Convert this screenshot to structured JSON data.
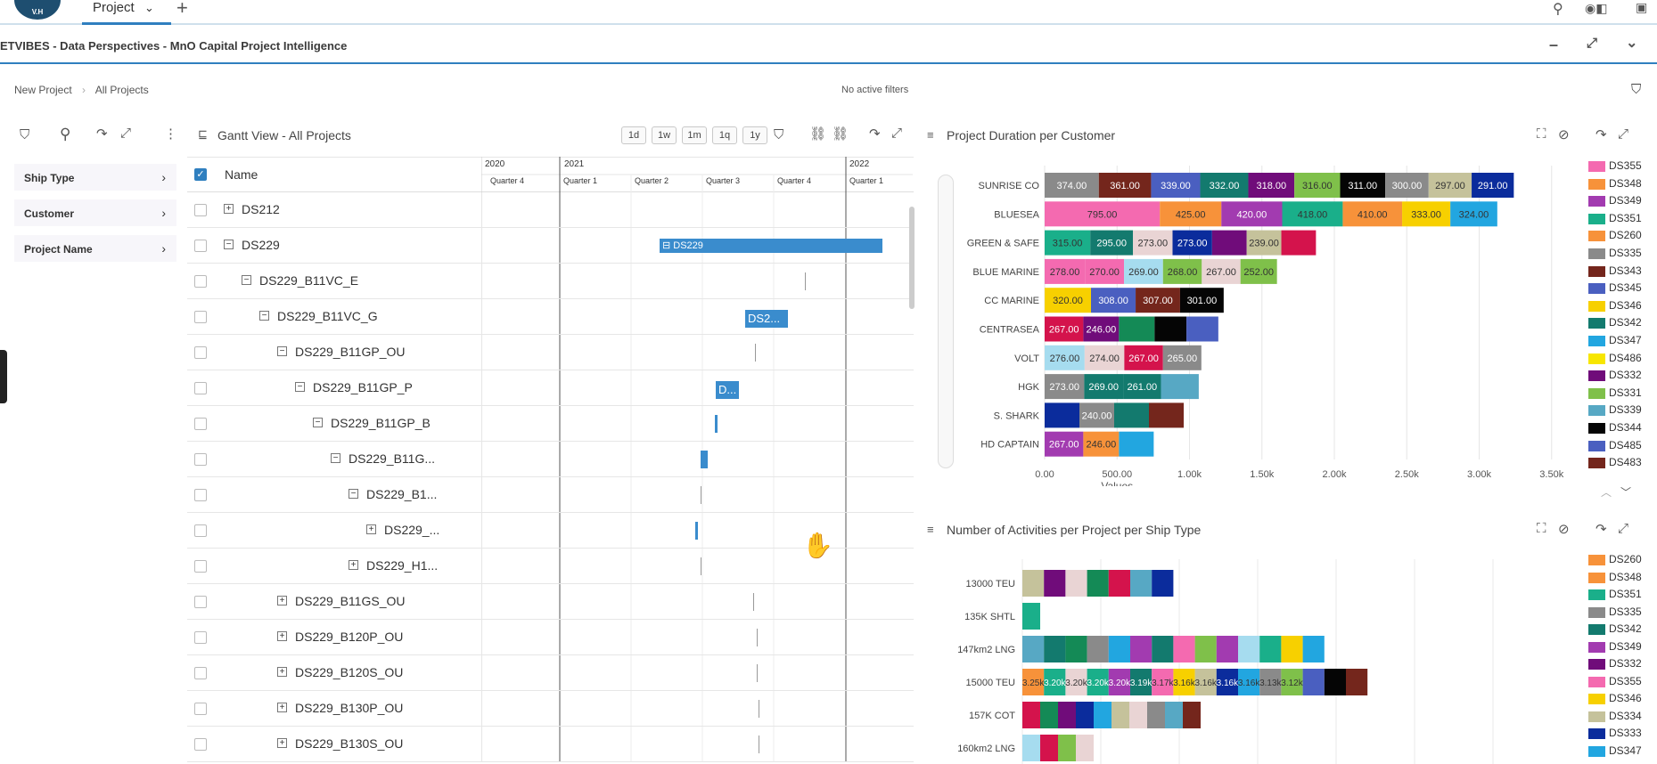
{
  "app": {
    "logo_text": "V.H",
    "tab_label": "Project",
    "window_title": "ETVIBES - Data Perspectives - MnO Capital Project Intelligence"
  },
  "breadcrumb": {
    "items": [
      "New Project",
      "All Projects"
    ],
    "filter_status": "No active filters"
  },
  "filters": {
    "items": [
      "Ship Type",
      "Customer",
      "Project Name"
    ]
  },
  "gantt": {
    "title": "Gantt View - All Projects",
    "zoom": [
      "1d",
      "1w",
      "1m",
      "1q",
      "1y"
    ],
    "name_header": "Name",
    "years": [
      "2020",
      "2021",
      "2022"
    ],
    "quarters": [
      "Quarter 4",
      "Quarter 1",
      "Quarter 2",
      "Quarter 3",
      "Quarter 4",
      "Quarter 1"
    ],
    "rows": [
      {
        "name": "DS212",
        "level": 0,
        "toggle": "+"
      },
      {
        "name": "DS229",
        "level": 0,
        "toggle": "−",
        "bar": "DS229"
      },
      {
        "name": "DS229_B11VC_E",
        "level": 1,
        "toggle": "−"
      },
      {
        "name": "DS229_B11VC_G",
        "level": 2,
        "toggle": "−",
        "bar": "DS2..."
      },
      {
        "name": "DS229_B11GP_OU",
        "level": 3,
        "toggle": "−"
      },
      {
        "name": "DS229_B11GP_P",
        "level": 4,
        "toggle": "−",
        "bar": "D..."
      },
      {
        "name": "DS229_B11GP_B",
        "level": 5,
        "toggle": "−"
      },
      {
        "name": "DS229_B11G...",
        "level": 6,
        "toggle": "−"
      },
      {
        "name": "DS229_B1...",
        "level": 7,
        "toggle": "−"
      },
      {
        "name": "DS229_...",
        "level": 8,
        "toggle": "+"
      },
      {
        "name": "DS229_H1...",
        "level": 7,
        "toggle": "+"
      },
      {
        "name": "DS229_B11GS_OU",
        "level": 3,
        "toggle": "+"
      },
      {
        "name": "DS229_B120P_OU",
        "level": 3,
        "toggle": "+"
      },
      {
        "name": "DS229_B120S_OU",
        "level": 3,
        "toggle": "+"
      },
      {
        "name": "DS229_B130P_OU",
        "level": 3,
        "toggle": "+"
      },
      {
        "name": "DS229_B130S_OU",
        "level": 3,
        "toggle": "+"
      }
    ]
  },
  "colors": {
    "DS355": "#f46ab0",
    "DS348": "#f7923a",
    "DS349": "#a23bb0",
    "DS351": "#1aaf8a",
    "DS260": "#f7923a",
    "DS335": "#8a8a8a",
    "DS343": "#74261c",
    "DS345": "#4a5fc0",
    "DS346": "#f7d000",
    "DS342": "#137a6e",
    "DS347": "#22a6e0",
    "DS486": "#f7e600",
    "DS332": "#700c7a",
    "DS331": "#7fc04a",
    "DS339": "#57a8c4",
    "DS344": "#050505",
    "DS485": "#4a5fc0",
    "DS483": "#74261c",
    "DS334": "#c5c29b",
    "DS333": "#0b2c9c",
    "DS340": "#d4134c",
    "DS336": "#a6dcef",
    "DS337": "#e9d4d4",
    "DS338": "#148a56"
  },
  "chart_data": [
    {
      "type": "bar",
      "orientation": "horizontal",
      "stacked": true,
      "title": "Project Duration per Customer",
      "xlabel": "Values",
      "xlim": [
        0,
        3500
      ],
      "xticks": [
        "0.00",
        "500.00",
        "1.00k",
        "1.50k",
        "2.00k",
        "2.50k",
        "3.00k",
        "3.50k"
      ],
      "legend": [
        "DS355",
        "DS348",
        "DS349",
        "DS351",
        "DS260",
        "DS335",
        "DS343",
        "DS345",
        "DS346",
        "DS342",
        "DS347",
        "DS486",
        "DS332",
        "DS331",
        "DS339",
        "DS344",
        "DS485",
        "DS483"
      ],
      "legend_position": "right",
      "categories": [
        "SUNRISE CO",
        "BLUESEA",
        "GREEN & SAFE",
        "BLUE MARINE",
        "CC MARINE",
        "CENTRASEA",
        "VOLT",
        "HGK",
        "S. SHARK",
        "HD CAPTAIN"
      ],
      "stacks": [
        [
          [
            "DS335",
            374,
            "374.00"
          ],
          [
            "DS343",
            361,
            "361.00"
          ],
          [
            "DS345",
            339,
            "339.00"
          ],
          [
            "DS342",
            332,
            "332.00"
          ],
          [
            "DS332",
            318,
            "318.00"
          ],
          [
            "DS331",
            316,
            "316.00"
          ],
          [
            "DS344",
            311,
            "311.00"
          ],
          [
            "DS335",
            300,
            "300.00"
          ],
          [
            "DS334",
            297,
            "297.00"
          ],
          [
            "DS333",
            291,
            "291.00"
          ]
        ],
        [
          [
            "DS355",
            795,
            "795.00"
          ],
          [
            "DS348",
            425,
            "425.00"
          ],
          [
            "DS349",
            420,
            "420.00"
          ],
          [
            "DS351",
            418,
            "418.00"
          ],
          [
            "DS260",
            410,
            "410.00"
          ],
          [
            "DS346",
            333,
            "333.00"
          ],
          [
            "DS347",
            324,
            "324.00"
          ]
        ],
        [
          [
            "DS351",
            315,
            "315.00"
          ],
          [
            "DS342",
            295,
            "295.00"
          ],
          [
            "DS337",
            273,
            "273.00"
          ],
          [
            "DS333",
            273,
            "273.00"
          ],
          [
            "DS332",
            239,
            ""
          ],
          [
            "DS334",
            239,
            "239.00"
          ],
          [
            "DS340",
            239,
            ""
          ]
        ],
        [
          [
            "DS355",
            278,
            "278.00"
          ],
          [
            "DS355",
            270,
            "270.00"
          ],
          [
            "DS336",
            269,
            "269.00"
          ],
          [
            "DS331",
            268,
            "268.00"
          ],
          [
            "DS337",
            267,
            "267.00"
          ],
          [
            "DS331",
            252,
            "252.00"
          ]
        ],
        [
          [
            "DS346",
            320,
            "320.00"
          ],
          [
            "DS345",
            308,
            "308.00"
          ],
          [
            "DS343",
            307,
            "307.00"
          ],
          [
            "DS344",
            301,
            "301.00"
          ]
        ],
        [
          [
            "DS340",
            267,
            "267.00"
          ],
          [
            "DS332",
            246,
            "246.00"
          ],
          [
            "DS338",
            246,
            ""
          ],
          [
            "DS344",
            220,
            ""
          ],
          [
            "DS345",
            220,
            ""
          ]
        ],
        [
          [
            "DS336",
            276,
            "276.00"
          ],
          [
            "DS337",
            274,
            "274.00"
          ],
          [
            "DS340",
            267,
            "267.00"
          ],
          [
            "DS335",
            265,
            "265.00"
          ]
        ],
        [
          [
            "DS335",
            273,
            "273.00"
          ],
          [
            "DS342",
            269,
            "269.00"
          ],
          [
            "DS342",
            261,
            "261.00"
          ],
          [
            "DS339",
            261,
            ""
          ]
        ],
        [
          [
            "DS333",
            240,
            ""
          ],
          [
            "DS335",
            240,
            "240.00"
          ],
          [
            "DS342",
            240,
            ""
          ],
          [
            "DS343",
            240,
            ""
          ]
        ],
        [
          [
            "DS349",
            267,
            "267.00"
          ],
          [
            "DS348",
            246,
            "246.00"
          ],
          [
            "DS347",
            240,
            ""
          ]
        ]
      ]
    },
    {
      "type": "bar",
      "orientation": "horizontal",
      "stacked": true,
      "title": "Number of Activities per Project per Ship Type",
      "legend": [
        "DS260",
        "DS348",
        "DS351",
        "DS335",
        "DS342",
        "DS349",
        "DS332",
        "DS355",
        "DS346",
        "DS334",
        "DS333",
        "DS347"
      ],
      "legend_position": "right",
      "categories": [
        "13000 TEU",
        "135K SHTL",
        "147km2 LNG",
        "15000 TEU",
        "157K COT",
        "160km2 LNG"
      ],
      "stacks": [
        [
          [
            "DS334",
            1,
            ""
          ],
          [
            "DS332",
            1,
            ""
          ],
          [
            "DS337",
            1,
            ""
          ],
          [
            "DS338",
            1,
            ""
          ],
          [
            "DS340",
            1,
            ""
          ],
          [
            "DS339",
            1,
            ""
          ],
          [
            "DS333",
            1,
            ""
          ]
        ],
        [
          [
            "DS351",
            0.6,
            ""
          ]
        ],
        [
          [
            "DS339",
            1,
            ""
          ],
          [
            "DS342",
            1,
            ""
          ],
          [
            "DS338",
            1,
            ""
          ],
          [
            "DS335",
            1,
            ""
          ],
          [
            "DS347",
            1,
            ""
          ],
          [
            "DS349",
            1,
            ""
          ],
          [
            "DS342",
            1,
            ""
          ],
          [
            "DS355",
            1,
            ""
          ],
          [
            "DS331",
            1,
            ""
          ],
          [
            "DS349",
            1,
            ""
          ],
          [
            "DS336",
            1,
            ""
          ],
          [
            "DS351",
            1,
            ""
          ],
          [
            "DS346",
            1,
            ""
          ],
          [
            "DS347",
            1,
            ""
          ]
        ],
        [
          [
            "DS348",
            1,
            "3.25k"
          ],
          [
            "DS351",
            1,
            "3.20k"
          ],
          [
            "DS337",
            1,
            "3.20k"
          ],
          [
            "DS351",
            1,
            "3.20k"
          ],
          [
            "DS349",
            1,
            "3.20k"
          ],
          [
            "DS342",
            1,
            "3.19k"
          ],
          [
            "DS355",
            1,
            "3.17k"
          ],
          [
            "DS346",
            1,
            "3.16k"
          ],
          [
            "DS334",
            1,
            "3.16k"
          ],
          [
            "DS333",
            1,
            "3.16k"
          ],
          [
            "DS347",
            1,
            "3.16k"
          ],
          [
            "DS335",
            1,
            "3.13k"
          ],
          [
            "DS331",
            1,
            "3.12k"
          ],
          [
            "DS345",
            1,
            ""
          ],
          [
            "DS344",
            1,
            ""
          ],
          [
            "DS343",
            1,
            ""
          ]
        ],
        [
          [
            "DS340",
            0.6,
            ""
          ],
          [
            "DS338",
            0.6,
            ""
          ],
          [
            "DS332",
            0.6,
            ""
          ],
          [
            "DS333",
            0.6,
            ""
          ],
          [
            "DS347",
            0.6,
            ""
          ],
          [
            "DS334",
            0.6,
            ""
          ],
          [
            "DS337",
            0.6,
            ""
          ],
          [
            "DS335",
            0.6,
            ""
          ],
          [
            "DS339",
            0.6,
            ""
          ],
          [
            "DS343",
            0.6,
            ""
          ]
        ],
        [
          [
            "DS336",
            0.6,
            ""
          ],
          [
            "DS340",
            0.6,
            ""
          ],
          [
            "DS331",
            0.6,
            ""
          ],
          [
            "DS337",
            0.6,
            ""
          ]
        ]
      ]
    }
  ]
}
